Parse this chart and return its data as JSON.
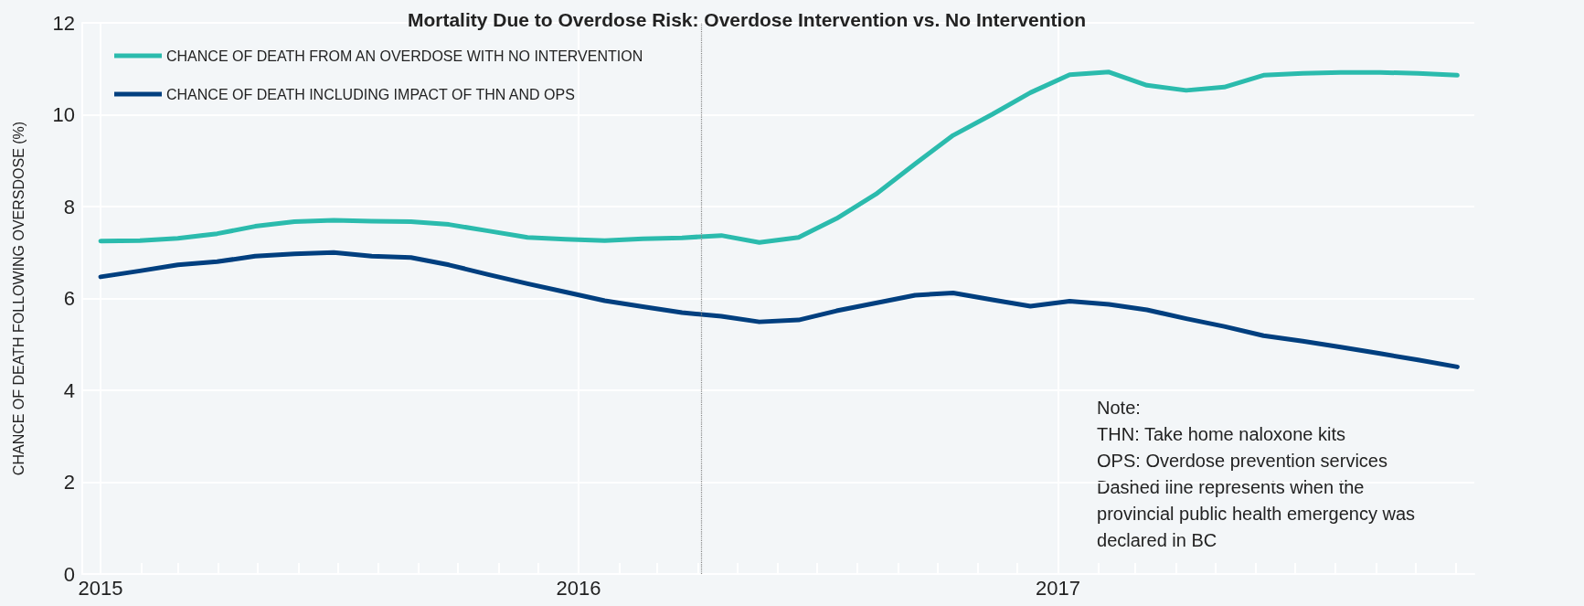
{
  "chart_data": {
    "type": "line",
    "title": "Mortality Due to Overdose Risk: Overdose Intervention vs. No Intervention",
    "ylabel": "CHANCE OF DEATH FOLLOWING OVERSDOSE (%)",
    "x": [
      "2015-01-01",
      "2015-01-31",
      "2015-03-01",
      "2015-03-31",
      "2015-04-29",
      "2015-05-29",
      "2015-06-28",
      "2015-07-27",
      "2015-08-26",
      "2015-09-24",
      "2015-10-24",
      "2015-11-23",
      "2015-12-22",
      "2016-01-21",
      "2016-02-19",
      "2016-03-20",
      "2016-04-19",
      "2016-05-18",
      "2016-06-17",
      "2016-07-16",
      "2016-08-15",
      "2016-09-14",
      "2016-10-13",
      "2016-11-12",
      "2016-12-11",
      "2017-01-10",
      "2017-02-09",
      "2017-03-10",
      "2017-04-09",
      "2017-05-08",
      "2017-06-07",
      "2017-07-07",
      "2017-08-05",
      "2017-09-04",
      "2017-10-03",
      "2017-11-02"
    ],
    "series": [
      {
        "name": "CHANCE OF DEATH FROM AN OVERDOSE WITH NO INTERVENTION",
        "color": "#2bbbad",
        "values": [
          7.25,
          7.26,
          7.31,
          7.41,
          7.57,
          7.67,
          7.7,
          7.68,
          7.67,
          7.61,
          7.47,
          7.33,
          7.29,
          7.26,
          7.3,
          7.32,
          7.37,
          7.22,
          7.33,
          7.74,
          8.27,
          8.93,
          9.55,
          10.01,
          10.48,
          10.87,
          10.93,
          10.64,
          10.53,
          10.6,
          10.86,
          10.9,
          10.92,
          10.92,
          10.9,
          10.86
        ]
      },
      {
        "name": "CHANCE OF DEATH INCLUDING IMPACT OF THN AND OPS",
        "color": "#003f7f",
        "values": [
          6.47,
          6.6,
          6.73,
          6.8,
          6.92,
          6.97,
          7.0,
          6.92,
          6.89,
          6.73,
          6.52,
          6.32,
          6.14,
          5.95,
          5.82,
          5.69,
          5.61,
          5.49,
          5.53,
          5.73,
          5.9,
          6.07,
          6.12,
          5.97,
          5.83,
          5.94,
          5.87,
          5.75,
          5.56,
          5.39,
          5.19,
          5.07,
          4.94,
          4.8,
          4.66,
          4.51
        ]
      }
    ],
    "xlim": [
      "2014-12-18",
      "2017-11-15"
    ],
    "xticks": [
      "2015",
      {
        "value": "2015-02",
        "label": null
      },
      {
        "value": "2015-03",
        "label": null
      },
      {
        "value": "2015-04",
        "label": null
      },
      {
        "value": "2015-05",
        "label": null
      },
      {
        "value": "2015-06",
        "label": null
      },
      {
        "value": "2015-07",
        "label": null
      },
      {
        "value": "2015-08",
        "label": null
      },
      {
        "value": "2015-09",
        "label": null
      },
      {
        "value": "2015-10",
        "label": null
      },
      {
        "value": "2015-11",
        "label": null
      },
      {
        "value": "2015-12",
        "label": null
      },
      "2016",
      {
        "value": "2016-02",
        "label": null
      },
      {
        "value": "2016-03",
        "label": null
      },
      {
        "value": "2016-04",
        "label": null
      },
      {
        "value": "2016-05",
        "label": null
      },
      {
        "value": "2016-06",
        "label": null
      },
      {
        "value": "2016-07",
        "label": null
      },
      {
        "value": "2016-08",
        "label": null
      },
      {
        "value": "2016-09",
        "label": null
      },
      {
        "value": "2016-10",
        "label": null
      },
      {
        "value": "2016-11",
        "label": null
      },
      {
        "value": "2016-12",
        "label": null
      },
      "2017",
      {
        "value": "2017-02",
        "label": null
      },
      {
        "value": "2017-03",
        "label": null
      },
      {
        "value": "2017-04",
        "label": null
      },
      {
        "value": "2017-05",
        "label": null
      },
      {
        "value": "2017-06",
        "label": null
      },
      {
        "value": "2017-07",
        "label": null
      },
      {
        "value": "2017-08",
        "label": null
      },
      {
        "value": "2017-09",
        "label": null
      },
      {
        "value": "2017-10",
        "label": null
      },
      {
        "value": "2017-11",
        "label": null
      }
    ],
    "ylim": [
      0,
      12
    ],
    "yticks": [
      0,
      2,
      4,
      6,
      8,
      10,
      12
    ],
    "ref_lines": [
      {
        "axis": "x",
        "value": "2016-04-04",
        "color": "#888888",
        "line_style": "dotted"
      }
    ],
    "annotations": [
      "Note:\nTHN: Take home naloxone kits\nOPS: Overdose prevention services\nDashed line represents when the\nprovincial public health emergency was\ndeclared in BC"
    ],
    "grid": true,
    "legend": "top left",
    "marker": "none",
    "line_style": "solid"
  }
}
